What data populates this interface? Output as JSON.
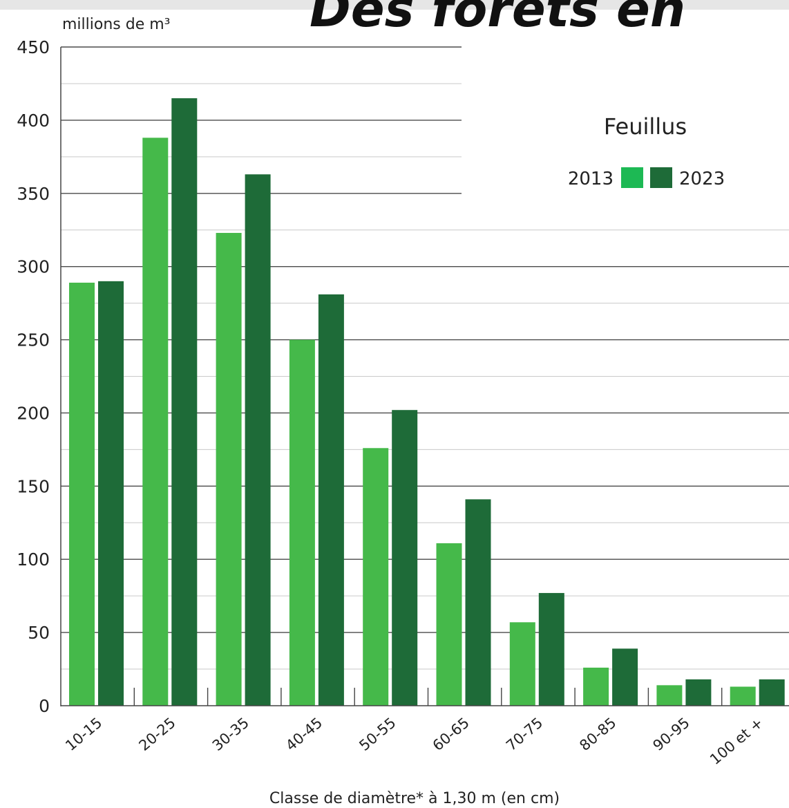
{
  "header": {
    "title_fragment": "Des forêts en"
  },
  "chart_data": {
    "type": "bar",
    "title": "Feuillus",
    "ylabel": "millions de m³",
    "xlabel": "Classe de diamètre* à 1,30 m (en cm)",
    "categories": [
      "10-15",
      "20-25",
      "30-35",
      "40-45",
      "50-55",
      "60-65",
      "70-75",
      "80-85",
      "90-95",
      "100 et +"
    ],
    "ylim": [
      0,
      450
    ],
    "yticks": [
      0,
      50,
      100,
      150,
      200,
      250,
      300,
      350,
      400,
      450
    ],
    "grid": true,
    "legend_position": "top-right",
    "series": [
      {
        "name": "2013",
        "color": "#45b94a",
        "values": [
          289,
          388,
          323,
          250,
          176,
          111,
          57,
          26,
          14,
          13
        ]
      },
      {
        "name": "2023",
        "color": "#1e6b38",
        "values": [
          290,
          415,
          363,
          281,
          202,
          141,
          77,
          39,
          18,
          18
        ]
      }
    ]
  }
}
